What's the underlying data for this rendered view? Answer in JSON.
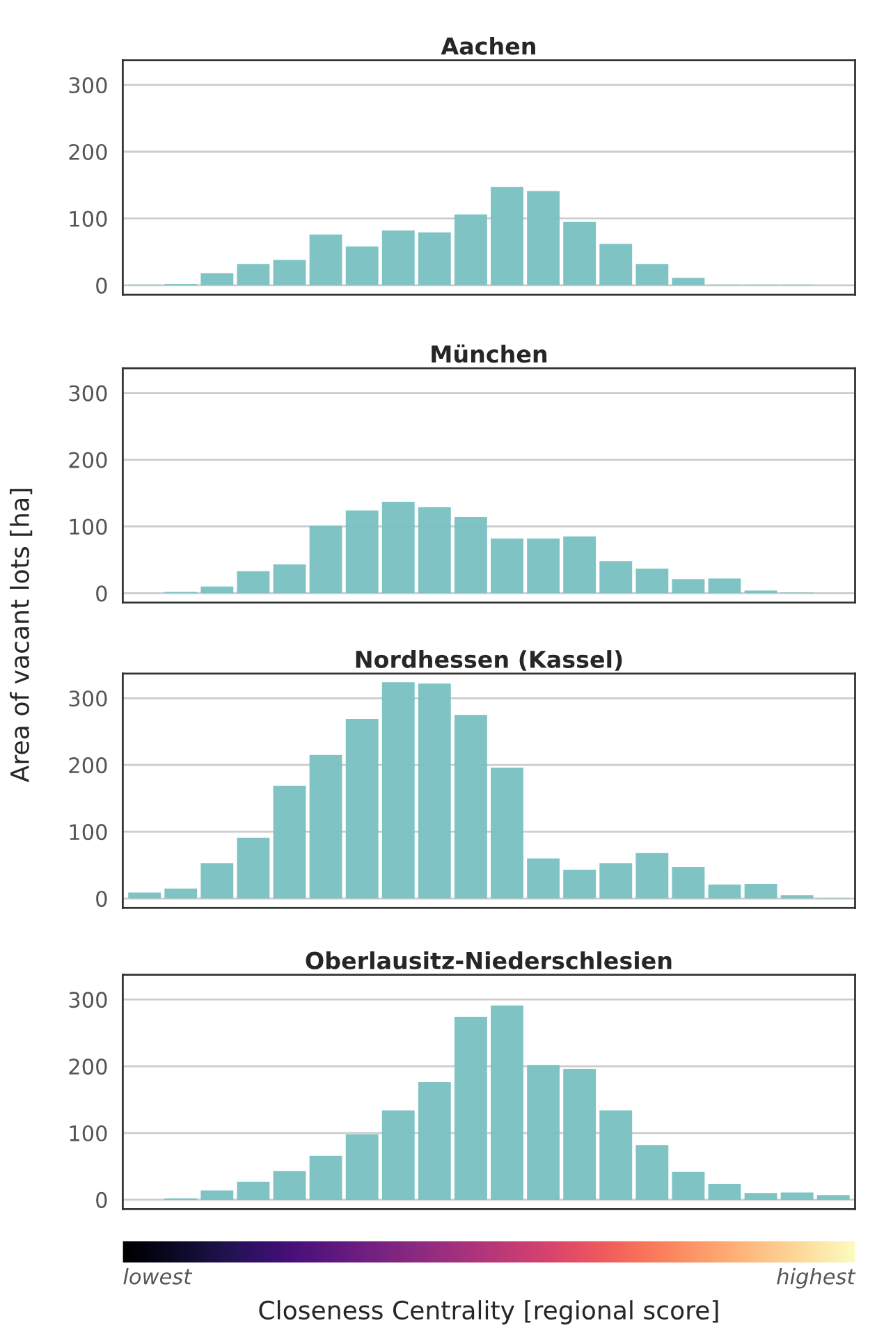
{
  "chart_data": [
    {
      "type": "bar",
      "title": "Aachen",
      "categories": [
        null,
        null,
        null,
        null,
        null,
        null,
        null,
        null,
        null,
        null,
        null,
        null,
        null,
        null,
        null,
        null,
        null,
        null,
        null,
        null
      ],
      "values": [
        1,
        2,
        18,
        32,
        38,
        76,
        58,
        82,
        79,
        106,
        147,
        141,
        95,
        62,
        32,
        11,
        1,
        1,
        1,
        null
      ],
      "color": "#79c0c1",
      "ylim": [
        -14,
        337
      ],
      "yticks": [
        0,
        100,
        200,
        300
      ],
      "grid": "y",
      "tick_labels": "y"
    },
    {
      "type": "bar",
      "title": "München",
      "ylabel": "Area of vacant lots [ha]",
      "categories": [
        null,
        null,
        null,
        null,
        null,
        null,
        null,
        null,
        null,
        null,
        null,
        null,
        null,
        null,
        null,
        null,
        null,
        null,
        null,
        null
      ],
      "values": [
        null,
        2,
        10,
        33,
        43,
        101,
        124,
        137,
        129,
        114,
        82,
        82,
        85,
        48,
        37,
        21,
        22,
        4,
        1,
        null
      ],
      "color": "#79c0c1",
      "ylim": [
        -14,
        337
      ],
      "yticks": [
        0,
        100,
        200,
        300
      ],
      "grid": "y",
      "tick_labels": "y"
    },
    {
      "type": "bar",
      "title": "Nordhessen (Kassel)",
      "categories": [
        null,
        null,
        null,
        null,
        null,
        null,
        null,
        null,
        null,
        null,
        null,
        null,
        null,
        null,
        null,
        null,
        null,
        null,
        null,
        null
      ],
      "values": [
        9,
        15,
        53,
        91,
        169,
        215,
        269,
        324,
        322,
        275,
        196,
        60,
        43,
        53,
        68,
        47,
        21,
        22,
        5,
        1
      ],
      "color": "#79c0c1",
      "ylim": [
        -14,
        337
      ],
      "yticks": [
        0,
        100,
        200,
        300
      ],
      "grid": "y",
      "tick_labels": "y"
    },
    {
      "type": "bar",
      "title": "Oberlausitz-Niederschlesien",
      "xlabel": "Closeness Centrality [regional score]",
      "categories": [
        null,
        null,
        null,
        null,
        null,
        null,
        null,
        null,
        null,
        null,
        null,
        null,
        null,
        null,
        null,
        null,
        null,
        null,
        null,
        null
      ],
      "values": [
        null,
        2,
        14,
        27,
        43,
        66,
        98,
        134,
        176,
        274,
        291,
        202,
        196,
        134,
        82,
        42,
        24,
        10,
        11,
        7
      ],
      "color": "#79c0c1",
      "ylim": [
        -14,
        337
      ],
      "yticks": [
        0,
        100,
        200,
        300
      ],
      "grid": "y",
      "tick_labels": "y",
      "annotations": [
        "lowest",
        "highest"
      ]
    }
  ]
}
